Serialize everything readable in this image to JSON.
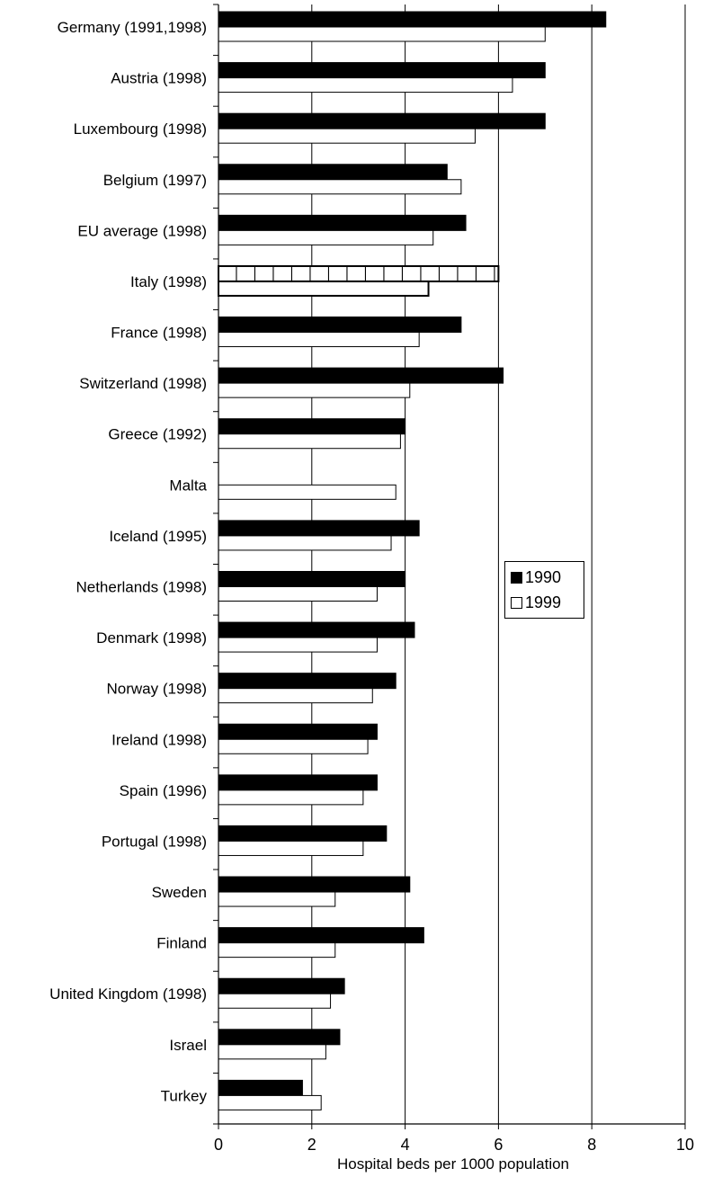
{
  "chart_data": {
    "type": "bar",
    "orientation": "horizontal",
    "title": "",
    "xlabel": "Hospital beds per 1000 population",
    "ylabel": "",
    "xlim": [
      0,
      10
    ],
    "xticks": [
      0,
      2,
      4,
      6,
      8,
      10
    ],
    "grid": "vertical major gridlines",
    "legend_position": "right-middle",
    "categories": [
      "Germany (1991,1998)",
      "Austria (1998)",
      "Luxembourg (1998)",
      "Belgium (1997)",
      "EU average (1998)",
      "Italy (1998)",
      "France (1998)",
      "Switzerland (1998)",
      "Greece (1992)",
      "Malta",
      "Iceland (1995)",
      "Netherlands (1998)",
      "Denmark (1998)",
      "Norway (1998)",
      "Ireland (1998)",
      "Spain (1996)",
      "Portugal (1998)",
      "Sweden",
      "Finland",
      "United Kingdom (1998)",
      "Israel",
      "Turkey"
    ],
    "series": [
      {
        "name": "1990",
        "color": "#000000",
        "values": [
          8.3,
          7.0,
          7.0,
          4.9,
          5.3,
          6.0,
          5.2,
          6.1,
          4.0,
          null,
          4.3,
          4.0,
          4.2,
          3.8,
          3.4,
          3.4,
          3.6,
          4.1,
          4.4,
          2.7,
          2.6,
          1.8
        ]
      },
      {
        "name": "1999",
        "color": "#ffffff",
        "values": [
          7.0,
          6.3,
          5.5,
          5.2,
          4.6,
          4.5,
          4.3,
          4.1,
          3.9,
          3.8,
          3.7,
          3.4,
          3.4,
          3.3,
          3.2,
          3.1,
          3.1,
          2.5,
          2.5,
          2.4,
          2.3,
          2.2
        ]
      }
    ],
    "highlighted_category": "Italy (1998)"
  }
}
